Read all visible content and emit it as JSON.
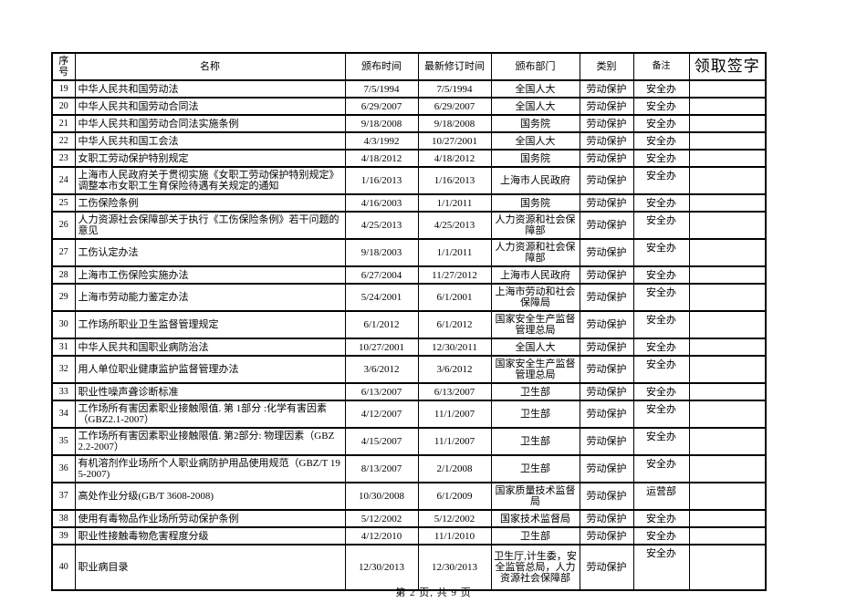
{
  "page": {
    "footer": "第 2 页, 共 9 页"
  },
  "table": {
    "headers": {
      "seq": "序号",
      "name": "名称",
      "issued": "颁布时间",
      "revised": "最新修订时间",
      "dept": "颁布部门",
      "category": "类别",
      "remark": "备注",
      "signature": "领取签字"
    },
    "rows": [
      {
        "seq": "19",
        "name": "中华人民共和国劳动法",
        "issued": "7/5/1994",
        "revised": "7/5/1994",
        "dept": "全国人大",
        "category": "劳动保护",
        "remark": "安全办",
        "signature": ""
      },
      {
        "seq": "20",
        "name": "中华人民共和国劳动合同法",
        "issued": "6/29/2007",
        "revised": "6/29/2007",
        "dept": "全国人大",
        "category": "劳动保护",
        "remark": "安全办",
        "signature": ""
      },
      {
        "seq": "21",
        "name": "中华人民共和国劳动合同法实施条例",
        "issued": "9/18/2008",
        "revised": "9/18/2008",
        "dept": "国务院",
        "category": "劳动保护",
        "remark": "安全办",
        "signature": ""
      },
      {
        "seq": "22",
        "name": "中华人民共和国工会法",
        "issued": "4/3/1992",
        "revised": "10/27/2001",
        "dept": "全国人大",
        "category": "劳动保护",
        "remark": "安全办",
        "signature": ""
      },
      {
        "seq": "23",
        "name": "女职工劳动保护特别规定",
        "issued": "4/18/2012",
        "revised": "4/18/2012",
        "dept": "国务院",
        "category": "劳动保护",
        "remark": "安全办",
        "signature": ""
      },
      {
        "seq": "24",
        "name": "上海市人民政府关于贯彻实施《女职工劳动保护特别规定》调整本市女职工生育保险待遇有关规定的通知",
        "issued": "1/16/2013",
        "revised": "1/16/2013",
        "dept": "上海市人民政府",
        "category": "劳动保护",
        "remark": "安全办",
        "signature": ""
      },
      {
        "seq": "25",
        "name": "工伤保险条例",
        "issued": "4/16/2003",
        "revised": "1/1/2011",
        "dept": "国务院",
        "category": "劳动保护",
        "remark": "安全办",
        "signature": ""
      },
      {
        "seq": "26",
        "name": "人力资源社会保障部关于执行《工伤保险条例》若干问题的意见",
        "issued": "4/25/2013",
        "revised": "4/25/2013",
        "dept": "人力资源和社会保障部",
        "category": "劳动保护",
        "remark": "安全办",
        "signature": ""
      },
      {
        "seq": "27",
        "name": "工伤认定办法",
        "issued": "9/18/2003",
        "revised": "1/1/2011",
        "dept": "人力资源和社会保障部",
        "category": "劳动保护",
        "remark": "安全办",
        "signature": ""
      },
      {
        "seq": "28",
        "name": "上海市工伤保险实施办法",
        "issued": "6/27/2004",
        "revised": "11/27/2012",
        "dept": "上海市人民政府",
        "category": "劳动保护",
        "remark": "安全办",
        "signature": ""
      },
      {
        "seq": "29",
        "name": "上海市劳动能力鉴定办法",
        "issued": "5/24/2001",
        "revised": "6/1/2001",
        "dept": "上海市劳动和社会保障局",
        "category": "劳动保护",
        "remark": "安全办",
        "signature": ""
      },
      {
        "seq": "30",
        "name": "工作场所职业卫生监督管理规定",
        "issued": "6/1/2012",
        "revised": "6/1/2012",
        "dept": "国家安全生产监督管理总局",
        "category": "劳动保护",
        "remark": "安全办",
        "signature": ""
      },
      {
        "seq": "31",
        "name": "中华人民共和国职业病防治法",
        "issued": "10/27/2001",
        "revised": "12/30/2011",
        "dept": "全国人大",
        "category": "劳动保护",
        "remark": "安全办",
        "signature": ""
      },
      {
        "seq": "32",
        "name": "用人单位职业健康监护监督管理办法",
        "issued": "3/6/2012",
        "revised": "3/6/2012",
        "dept": "国家安全生产监督管理总局",
        "category": "劳动保护",
        "remark": "安全办",
        "signature": ""
      },
      {
        "seq": "33",
        "name": "职业性噪声聋诊断标准",
        "issued": "6/13/2007",
        "revised": "6/13/2007",
        "dept": "卫生部",
        "category": "劳动保护",
        "remark": "安全办",
        "signature": ""
      },
      {
        "seq": "34",
        "name": "工作场所有害因素职业接触限值. 第 1部分 :化学有害因素（GBZ2.1-2007）",
        "issued": "4/12/2007",
        "revised": "11/1/2007",
        "dept": "卫生部",
        "category": "劳动保护",
        "remark": "安全办",
        "signature": ""
      },
      {
        "seq": "35",
        "name": "工作场所有害因素职业接触限值. 第2部分: 物理因素（GBZ2.2-2007）",
        "issued": "4/15/2007",
        "revised": "11/1/2007",
        "dept": "卫生部",
        "category": "劳动保护",
        "remark": "安全办",
        "signature": ""
      },
      {
        "seq": "36",
        "name": "有机溶剂作业场所个人职业病防护用品使用规范（GBZ/T 195-2007)",
        "issued": "8/13/2007",
        "revised": "2/1/2008",
        "dept": "卫生部",
        "category": "劳动保护",
        "remark": "安全办",
        "signature": ""
      },
      {
        "seq": "37",
        "name": "高处作业分级(GB/T 3608-2008)",
        "issued": "10/30/2008",
        "revised": "6/1/2009",
        "dept": "国家质量技术监督局",
        "category": "劳动保护",
        "remark": "运营部",
        "signature": ""
      },
      {
        "seq": "38",
        "name": "使用有毒物品作业场所劳动保护条例",
        "issued": "5/12/2002",
        "revised": "5/12/2002",
        "dept": "国家技术监督局",
        "category": "劳动保护",
        "remark": "安全办",
        "signature": ""
      },
      {
        "seq": "39",
        "name": "职业性接触毒物危害程度分级",
        "issued": "4/12/2010",
        "revised": "11/1/2010",
        "dept": "卫生部",
        "category": "劳动保护",
        "remark": "安全办",
        "signature": ""
      },
      {
        "seq": "40",
        "name": "职业病目录",
        "issued": "12/30/2013",
        "revised": "12/30/2013",
        "dept": "卫生厅,计生委，安全监管总局，人力资源社会保障部",
        "category": "劳动保护",
        "remark": "安全办",
        "signature": ""
      }
    ]
  }
}
